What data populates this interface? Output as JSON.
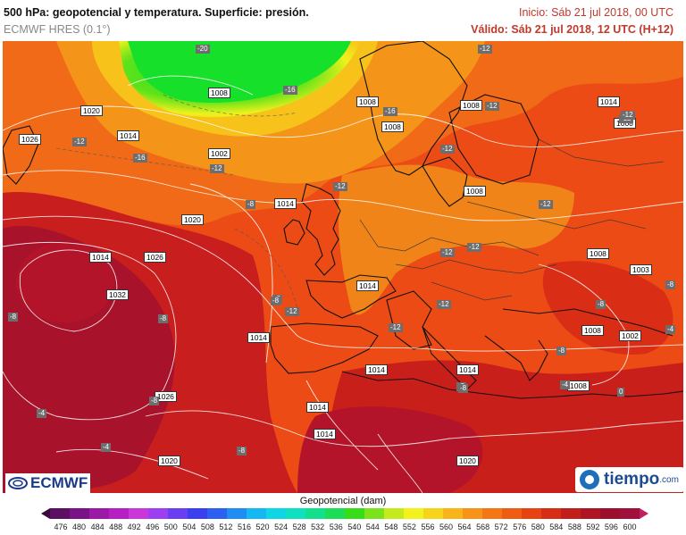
{
  "header": {
    "title": "500 hPa: geopotencial y temperatura. Superficie: presión.",
    "model": "ECMWF HRES (0.1°)",
    "init": "Inicio: Sáb 21 jul 2018, 00 UTC",
    "valid": "Válido: Sáb 21 jul 2018, 12 UTC (H+12)"
  },
  "isobars": [
    "1026",
    "1020",
    "1014",
    "1008",
    "1002",
    "1026",
    "1020",
    "1014",
    "1008",
    "1014",
    "1020",
    "1032",
    "1026",
    "1026",
    "1020",
    "1014",
    "1014",
    "1014",
    "1014",
    "1008",
    "1008",
    "1014",
    "1008",
    "1008",
    "1008",
    "1008",
    "1003",
    "1008",
    "1002",
    "1008",
    "1014",
    "1014",
    "1020"
  ],
  "temps": [
    "-20",
    "-16",
    "-16",
    "-12",
    "-16",
    "-12",
    "-12",
    "-12",
    "-8",
    "-12",
    "-12",
    "-12",
    "-12",
    "-12",
    "-12",
    "-12",
    "-12",
    "-12",
    "-12",
    "-8",
    "-8",
    "-8",
    "-4",
    "-4",
    "-8",
    "-8",
    "-8",
    "-8",
    "-8",
    "-4",
    "0",
    "-4",
    "-8",
    "-8",
    "-8"
  ],
  "logos": {
    "left": "ECMWF",
    "right": "tiempo",
    "right_domain": ".com"
  },
  "colorbar": {
    "title": "Geopotencial (dam)",
    "ticks": [
      "476",
      "480",
      "484",
      "488",
      "492",
      "496",
      "500",
      "504",
      "508",
      "512",
      "516",
      "520",
      "524",
      "528",
      "532",
      "536",
      "540",
      "544",
      "548",
      "552",
      "556",
      "560",
      "564",
      "568",
      "572",
      "576",
      "580",
      "584",
      "588",
      "592",
      "596",
      "600"
    ],
    "colors": [
      "#3a0a3c",
      "#5c0f63",
      "#7a1486",
      "#9a1aa7",
      "#b51fc3",
      "#c937d8",
      "#9b3ff0",
      "#6a3ff2",
      "#3b3ff0",
      "#2c60f0",
      "#1f8df2",
      "#14b9f2",
      "#0fd6e6",
      "#10e0c2",
      "#12e08c",
      "#1cdd56",
      "#38dd1a",
      "#7ce31a",
      "#c4ec1c",
      "#f4f21c",
      "#f7d41a",
      "#f8b41a",
      "#f79318",
      "#f47716",
      "#ef5c14",
      "#e64212",
      "#d62d14",
      "#c21e1a",
      "#ae1422",
      "#9c0f2a",
      "#a0103a",
      "#c41e60"
    ]
  }
}
